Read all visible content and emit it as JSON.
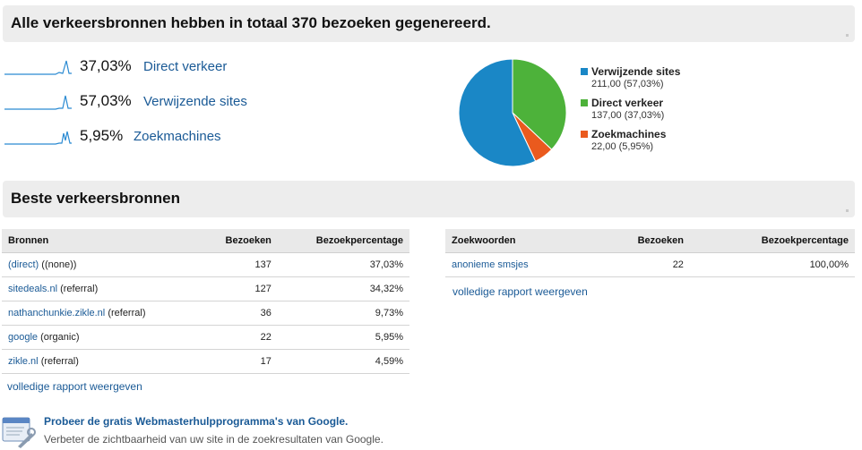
{
  "summary": {
    "title": "Alle verkeersbronnen hebben in totaal 370 bezoeken gegenereerd."
  },
  "sources_breakdown": [
    {
      "percent": "37,03%",
      "label": "Direct verkeer"
    },
    {
      "percent": "57,03%",
      "label": "Verwijzende sites"
    },
    {
      "percent": "5,95%",
      "label": "Zoekmachines"
    }
  ],
  "chart_data": {
    "type": "pie",
    "slices": [
      {
        "name": "Verwijzende sites",
        "value": 211,
        "value_text": "211,00 (57,03%)",
        "color": "#1a87c6"
      },
      {
        "name": "Direct verkeer",
        "value": 137,
        "value_text": "137,00 (37,03%)",
        "color": "#4db23a"
      },
      {
        "name": "Zoekmachines",
        "value": 22,
        "value_text": "22,00 (5,95%)",
        "color": "#ea5a1e"
      }
    ],
    "legend_placement": "right"
  },
  "top_sources": {
    "title": "Beste verkeersbronnen",
    "sources_table": {
      "headers": [
        "Bronnen",
        "Bezoeken",
        "Bezoekpercentage"
      ],
      "rows": [
        {
          "source": "(direct)",
          "medium": "((none))",
          "visits": "137",
          "percent": "37,03%"
        },
        {
          "source": "sitedeals.nl",
          "medium": "(referral)",
          "visits": "127",
          "percent": "34,32%"
        },
        {
          "source": "nathanchunkie.zikle.nl",
          "medium": "(referral)",
          "visits": "36",
          "percent": "9,73%"
        },
        {
          "source": "google",
          "medium": "(organic)",
          "visits": "22",
          "percent": "5,95%"
        },
        {
          "source": "zikle.nl",
          "medium": "(referral)",
          "visits": "17",
          "percent": "4,59%"
        }
      ],
      "report_link": "volledige rapport weergeven"
    },
    "keywords_table": {
      "headers": [
        "Zoekwoorden",
        "Bezoeken",
        "Bezoekpercentage"
      ],
      "rows": [
        {
          "keyword": "anonieme smsjes",
          "visits": "22",
          "percent": "100,00%"
        }
      ],
      "report_link": "volledige rapport weergeven"
    }
  },
  "promo": {
    "title": "Probeer de gratis Webmasterhulpprogramma's van Google.",
    "description": "Verbeter de zichtbaarheid van uw site in de zoekresultaten van Google."
  },
  "colors": {
    "link": "#1a5a96",
    "sparkline": "#2a8ad2"
  }
}
